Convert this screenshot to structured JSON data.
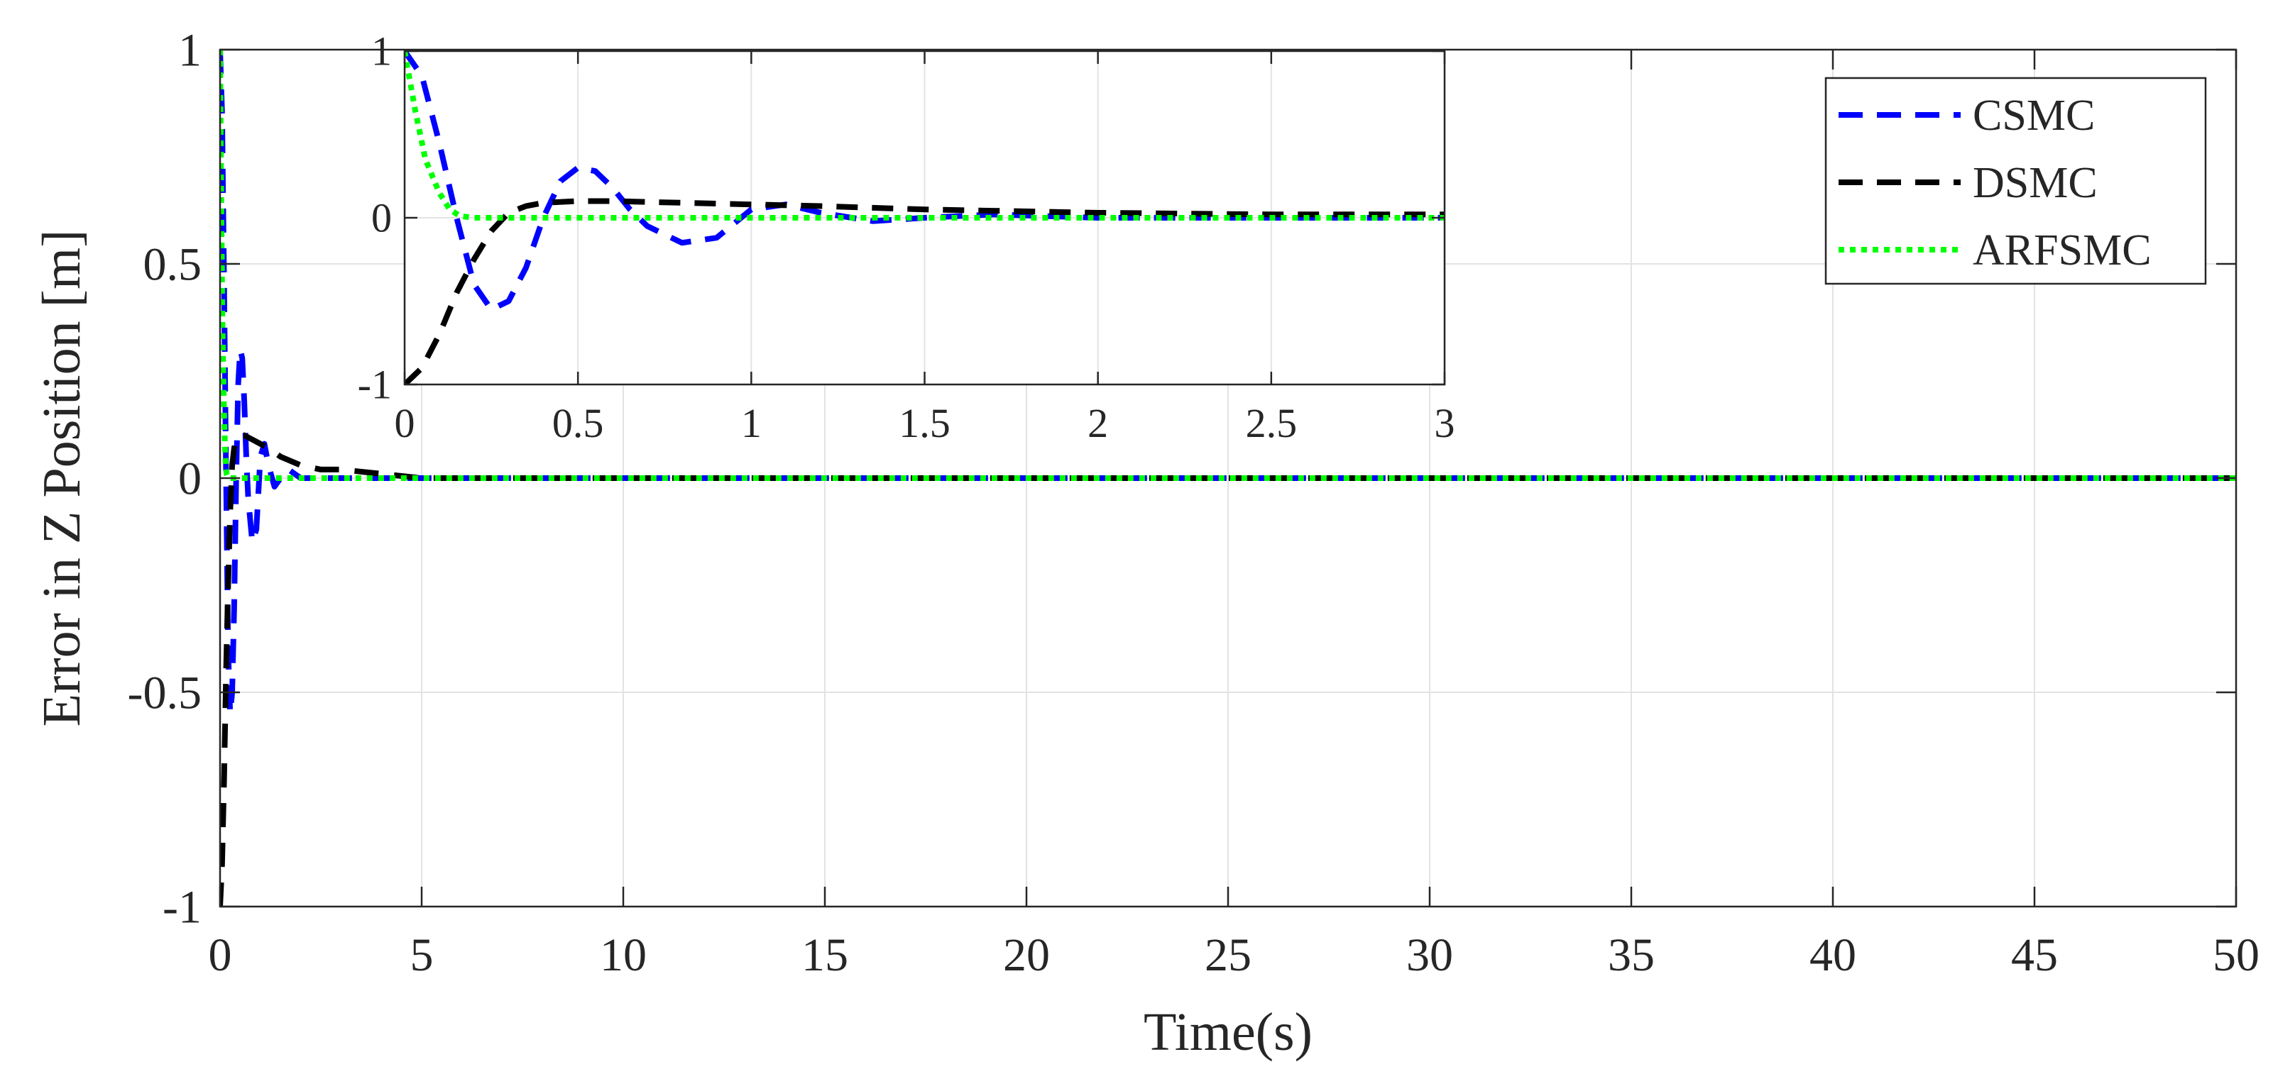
{
  "chart_data": [
    {
      "type": "line",
      "id": "main",
      "title": "",
      "xlabel": "Time(s)",
      "ylabel": "Error in Z Position [m]",
      "xlim": [
        0,
        50
      ],
      "ylim": [
        -1,
        1
      ],
      "xticks": [
        0,
        5,
        10,
        15,
        20,
        25,
        30,
        35,
        40,
        45,
        50
      ],
      "yticks": [
        -1,
        -0.5,
        0,
        0.5,
        1
      ],
      "xtick_labels": [
        "0",
        "5",
        "10",
        "15",
        "20",
        "25",
        "30",
        "35",
        "40",
        "45",
        "50"
      ],
      "ytick_labels": [
        "-1",
        "-0.5",
        "0",
        "0.5",
        "1"
      ],
      "grid": true,
      "legend_position": "top-right",
      "series": [
        {
          "name": "CSMC",
          "color": "#0000ff",
          "dash": "dashed",
          "x": [
            0,
            0.05,
            0.1,
            0.15,
            0.2,
            0.25,
            0.3,
            0.35,
            0.4,
            0.45,
            0.5,
            0.55,
            0.6,
            0.65,
            0.7,
            0.8,
            0.9,
            1.0,
            1.1,
            1.2,
            1.35,
            1.5,
            1.7,
            2.0,
            2.5,
            3.0,
            5,
            10,
            20,
            30,
            40,
            50
          ],
          "y": [
            1,
            0.85,
            0.45,
            0.0,
            -0.4,
            -0.55,
            -0.5,
            -0.3,
            0.0,
            0.22,
            0.3,
            0.28,
            0.18,
            0.05,
            -0.05,
            -0.15,
            -0.12,
            0.05,
            0.08,
            0.03,
            -0.02,
            0.0,
            0.02,
            0.0,
            0.0,
            0.0,
            0,
            0,
            0,
            0,
            0,
            0
          ]
        },
        {
          "name": "DSMC",
          "color": "#000000",
          "dash": "dashed",
          "x": [
            0,
            0.05,
            0.1,
            0.15,
            0.2,
            0.25,
            0.3,
            0.35,
            0.4,
            0.5,
            0.6,
            0.8,
            1.0,
            1.2,
            1.5,
            2.0,
            2.5,
            3.0,
            4,
            5,
            10,
            20,
            30,
            40,
            50
          ],
          "y": [
            -1,
            -0.9,
            -0.7,
            -0.45,
            -0.25,
            -0.08,
            0.03,
            0.07,
            0.09,
            0.1,
            0.1,
            0.09,
            0.08,
            0.07,
            0.05,
            0.03,
            0.02,
            0.02,
            0.01,
            0.0,
            0,
            0,
            0,
            0,
            0
          ]
        },
        {
          "name": "ARFSMC",
          "color": "#00ff00",
          "dash": "dotted",
          "x": [
            0,
            0.03,
            0.06,
            0.1,
            0.13,
            0.16,
            0.2,
            0.3,
            0.5,
            1.0,
            2.0,
            3.0,
            10,
            20,
            30,
            40,
            50
          ],
          "y": [
            1,
            0.65,
            0.35,
            0.15,
            0.05,
            0.01,
            0.0,
            0.0,
            0.0,
            0.0,
            0.0,
            0.0,
            0,
            0,
            0,
            0,
            0
          ]
        }
      ]
    },
    {
      "type": "line",
      "id": "inset",
      "title": "",
      "xlabel": "",
      "ylabel": "",
      "xlim": [
        0,
        3
      ],
      "ylim": [
        -1,
        1
      ],
      "xticks": [
        0,
        0.5,
        1,
        1.5,
        2,
        2.5,
        3
      ],
      "yticks": [
        -1,
        0,
        1
      ],
      "xtick_labels": [
        "0",
        "0.5",
        "1",
        "1.5",
        "2",
        "2.5",
        "3"
      ],
      "ytick_labels": [
        "-1",
        "0",
        "1"
      ],
      "grid": true,
      "note_series": "same series as main chart, zoomed to 0-3 s"
    }
  ]
}
